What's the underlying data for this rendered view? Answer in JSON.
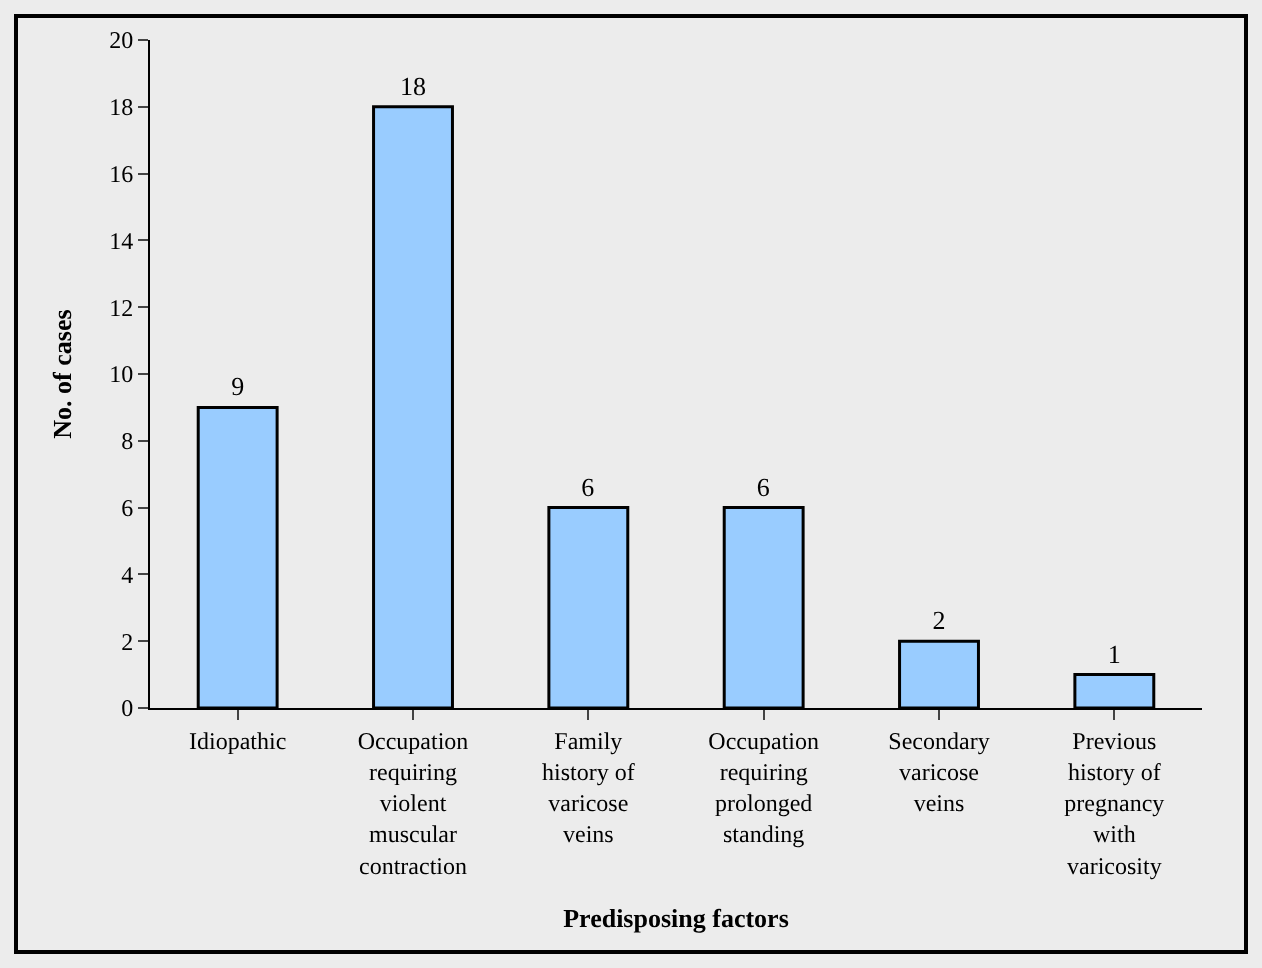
{
  "chart_data": {
    "type": "bar",
    "xlabel": "Predisposing factors",
    "ylabel": "No. of cases",
    "categories": [
      "Idiopathic",
      "Occupation requiring violent muscular contraction",
      "Family history of varicose veins",
      "Occupation requiring prolonged standing",
      "Secondary varicose veins",
      "Previous history of pregnancy with varicosity"
    ],
    "values": [
      9,
      18,
      6,
      6,
      2,
      1
    ],
    "color": "#99ccff",
    "ylim": [
      0,
      20
    ],
    "yticks": [
      0,
      2,
      4,
      6,
      8,
      10,
      12,
      14,
      16,
      18,
      20
    ],
    "grid": false,
    "data_labels": true,
    "legend": false
  }
}
